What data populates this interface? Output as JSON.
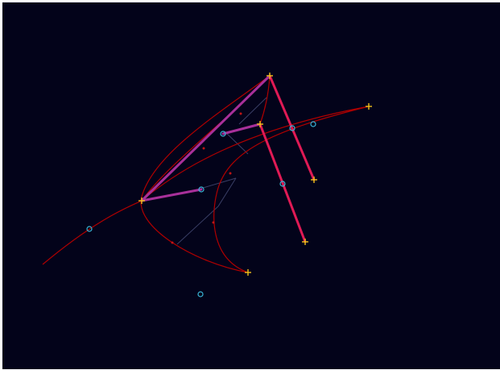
{
  "canvas": {
    "background_color": "#03031a",
    "colors": {
      "curve": "#b00000",
      "guide": "#3a3f66",
      "polygon_inner": "#a8309a",
      "segment_highlight": "#e01a55",
      "handle_purple": "#9a2eb8",
      "anchor_marker": "#f2c21a",
      "control_point": "#39b6d8",
      "small_dot": "#c01414"
    }
  },
  "elements": {
    "anchor_markers": [
      "+",
      "+",
      "+",
      "+",
      "+",
      "+",
      "+"
    ],
    "control_markers": [
      "o",
      "o",
      "o",
      "o",
      "o",
      "o",
      "o"
    ]
  }
}
